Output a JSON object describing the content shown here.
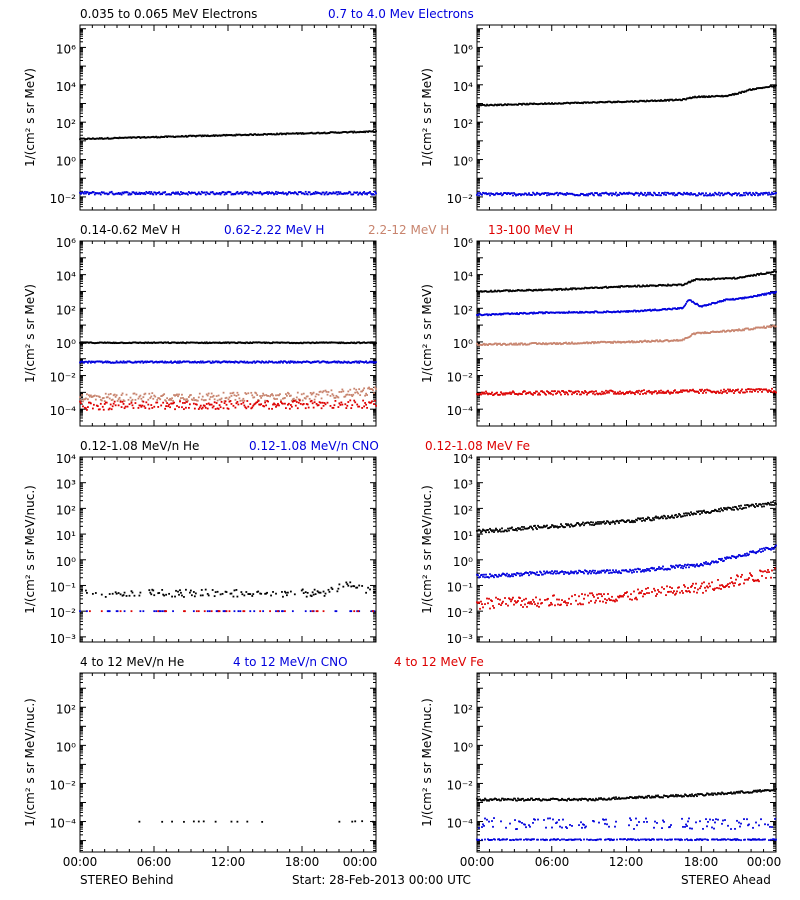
{
  "colors": {
    "black": "#000000",
    "blue": "#0000dd",
    "tan": "#c8846e",
    "red": "#dd0000"
  },
  "rows": [
    {
      "title_segments": [
        {
          "text": "0.035 to 0.065 MeV Electrons",
          "color": "black"
        },
        {
          "text": "0.7 to 4.0 Mev Electrons",
          "color": "blue"
        }
      ]
    },
    {
      "title_segments": [
        {
          "text": "0.14-0.62 MeV H",
          "color": "black"
        },
        {
          "text": "0.62-2.22 MeV H",
          "color": "blue"
        },
        {
          "text": "2.2-12 MeV H",
          "color": "tan"
        },
        {
          "text": "13-100 MeV H",
          "color": "red"
        }
      ]
    },
    {
      "title_segments": [
        {
          "text": "0.12-1.08 MeV/n He",
          "color": "black"
        },
        {
          "text": "0.12-1.08 MeV/n CNO",
          "color": "blue"
        },
        {
          "text": "0.12-1.08 MeV Fe",
          "color": "red"
        }
      ]
    },
    {
      "title_segments": [
        {
          "text": "4 to 12 MeV/n He",
          "color": "black"
        },
        {
          "text": "4 to 12 MeV/n CNO",
          "color": "blue"
        },
        {
          "text": "4 to 12 MeV Fe",
          "color": "red"
        }
      ]
    }
  ],
  "x_tick_labels": [
    "00:00",
    "06:00",
    "12:00",
    "18:00",
    "00:00"
  ],
  "footer": {
    "left": "STEREO Behind",
    "center": "Start: 28-Feb-2013 00:00 UTC",
    "right": "STEREO Ahead"
  },
  "chart_data": [
    {
      "type": "scatter",
      "panel": "row1-left",
      "yscale": "log",
      "ylim_log10": [
        -2.7,
        7.2
      ],
      "xlim_hours": [
        0,
        24
      ],
      "ylabel": "1/(cm² s sr MeV)",
      "ytick_exponents": [
        -2,
        0,
        2,
        4,
        6
      ],
      "series": [
        {
          "color": "black",
          "x_hours": [
            0,
            6,
            12,
            18,
            24
          ],
          "log10_y": [
            1.1,
            1.2,
            1.3,
            1.4,
            1.5
          ],
          "scatter": 0.03,
          "gap_prob": 0
        },
        {
          "color": "blue",
          "x_hours": [
            0,
            24
          ],
          "log10_y": [
            -1.8,
            -1.8
          ],
          "scatter": 0.08,
          "gap_prob": 0
        }
      ]
    },
    {
      "type": "scatter",
      "panel": "row1-right",
      "yscale": "log",
      "ylim_log10": [
        -2.7,
        7.2
      ],
      "xlim_hours": [
        0,
        24
      ],
      "ylabel": "1/(cm² s sr MeV)",
      "ytick_exponents": [
        -2,
        0,
        2,
        4,
        6
      ],
      "series": [
        {
          "color": "black",
          "x_hours": [
            0,
            6,
            12,
            16.5,
            17.5,
            20,
            21,
            22,
            24
          ],
          "log10_y": [
            2.9,
            3.0,
            3.1,
            3.2,
            3.35,
            3.4,
            3.55,
            3.75,
            3.95
          ],
          "scatter": 0.03,
          "gap_prob": 0
        },
        {
          "color": "blue",
          "x_hours": [
            0,
            24
          ],
          "log10_y": [
            -1.85,
            -1.85
          ],
          "scatter": 0.08,
          "gap_prob": 0
        }
      ]
    },
    {
      "type": "scatter",
      "panel": "row2-left",
      "yscale": "log",
      "ylim_log10": [
        -5.0,
        6.0
      ],
      "xlim_hours": [
        0,
        24
      ],
      "ylabel": "1/(cm² s sr MeV)",
      "ytick_exponents": [
        -4,
        -2,
        0,
        2,
        4,
        6
      ],
      "series": [
        {
          "color": "black",
          "x_hours": [
            0,
            24
          ],
          "log10_y": [
            -0.05,
            -0.05
          ],
          "scatter": 0.03,
          "gap_prob": 0
        },
        {
          "color": "blue",
          "x_hours": [
            0,
            24
          ],
          "log10_y": [
            -1.2,
            -1.2
          ],
          "scatter": 0.05,
          "gap_prob": 0
        },
        {
          "color": "tan",
          "x_hours": [
            0,
            18,
            24
          ],
          "log10_y": [
            -3.3,
            -3.25,
            -2.9
          ],
          "scatter": 0.25,
          "gap_prob": 0.1
        },
        {
          "color": "red",
          "x_hours": [
            0,
            24
          ],
          "log10_y": [
            -3.8,
            -3.7
          ],
          "scatter": 0.25,
          "gap_prob": 0.2
        }
      ]
    },
    {
      "type": "scatter",
      "panel": "row2-right",
      "yscale": "log",
      "ylim_log10": [
        -5.0,
        6.0
      ],
      "xlim_hours": [
        0,
        24
      ],
      "ylabel": "1/(cm² s sr MeV)",
      "ytick_exponents": [
        -4,
        -2,
        0,
        2,
        4,
        6
      ],
      "series": [
        {
          "color": "black",
          "x_hours": [
            0,
            6,
            12,
            16.5,
            17.5,
            21,
            24
          ],
          "log10_y": [
            3.0,
            3.1,
            3.3,
            3.4,
            3.7,
            3.8,
            4.2
          ],
          "scatter": 0.04,
          "gap_prob": 0
        },
        {
          "color": "blue",
          "x_hours": [
            0,
            6,
            12,
            16.5,
            17,
            18,
            20,
            21,
            24
          ],
          "log10_y": [
            1.6,
            1.75,
            1.8,
            2.0,
            2.5,
            2.1,
            2.5,
            2.55,
            2.95
          ],
          "scatter": 0.04,
          "gap_prob": 0
        },
        {
          "color": "tan",
          "x_hours": [
            0,
            6,
            12,
            16.5,
            17.5,
            21,
            24
          ],
          "log10_y": [
            -0.15,
            -0.1,
            0.0,
            0.1,
            0.5,
            0.7,
            0.95
          ],
          "scatter": 0.05,
          "gap_prob": 0
        },
        {
          "color": "red",
          "x_hours": [
            0,
            12,
            24
          ],
          "log10_y": [
            -3.05,
            -3.0,
            -2.9
          ],
          "scatter": 0.12,
          "gap_prob": 0
        }
      ]
    },
    {
      "type": "scatter",
      "panel": "row3-left",
      "yscale": "log",
      "ylim_log10": [
        -3.2,
        4.0
      ],
      "xlim_hours": [
        0,
        24
      ],
      "ylabel": "1/(cm² s sr MeV/nuc.)",
      "ytick_exponents": [
        -3,
        -2,
        -1,
        0,
        1,
        2,
        3,
        4
      ],
      "series": [
        {
          "color": "black",
          "x_hours": [
            0,
            20,
            22,
            24
          ],
          "log10_y": [
            -1.3,
            -1.3,
            -0.9,
            -1.3
          ],
          "scatter": 0.15,
          "gap_prob": 0.55
        },
        {
          "color": "blue",
          "x_hours": [
            0,
            24
          ],
          "log10_y": [
            -2.0,
            -2.0
          ],
          "scatter": 0.0,
          "gap_prob": 0.85
        },
        {
          "color": "red",
          "x_hours": [
            0,
            24
          ],
          "log10_y": [
            -2.0,
            -2.0
          ],
          "scatter": 0.0,
          "gap_prob": 0.9
        }
      ]
    },
    {
      "type": "scatter",
      "panel": "row3-right",
      "yscale": "log",
      "ylim_log10": [
        -3.2,
        4.0
      ],
      "xlim_hours": [
        0,
        24
      ],
      "ylabel": "1/(cm² s sr MeV/nuc.)",
      "ytick_exponents": [
        -3,
        -2,
        -1,
        0,
        1,
        2,
        3,
        4
      ],
      "series": [
        {
          "color": "black",
          "x_hours": [
            0,
            6,
            12,
            16,
            18,
            24
          ],
          "log10_y": [
            1.1,
            1.3,
            1.5,
            1.7,
            1.85,
            2.2
          ],
          "scatter": 0.07,
          "gap_prob": 0
        },
        {
          "color": "blue",
          "x_hours": [
            0,
            6,
            12,
            18,
            24
          ],
          "log10_y": [
            -0.65,
            -0.5,
            -0.45,
            -0.2,
            0.5
          ],
          "scatter": 0.07,
          "gap_prob": 0
        },
        {
          "color": "red",
          "x_hours": [
            0,
            6,
            12,
            18,
            24
          ],
          "log10_y": [
            -1.7,
            -1.6,
            -1.4,
            -1.1,
            -0.5
          ],
          "scatter": 0.22,
          "gap_prob": 0.15
        }
      ]
    },
    {
      "type": "scatter",
      "panel": "row4-left",
      "yscale": "log",
      "ylim_log10": [
        -5.6,
        3.8
      ],
      "xlim_hours": [
        0,
        24
      ],
      "ylabel": "1/(cm² s sr MeV/nuc.)",
      "ytick_exponents": [
        -4,
        -2,
        0,
        2
      ],
      "series": [
        {
          "color": "black",
          "x_hours": [
            0,
            24
          ],
          "log10_y": [
            -4.0,
            -4.0
          ],
          "scatter": 0.02,
          "gap_prob": 0.93
        }
      ]
    },
    {
      "type": "scatter",
      "panel": "row4-right",
      "yscale": "log",
      "ylim_log10": [
        -5.6,
        3.8
      ],
      "xlim_hours": [
        0,
        24
      ],
      "ylabel": "1/(cm² s sr MeV/nuc.)",
      "ytick_exponents": [
        -4,
        -2,
        0,
        2
      ],
      "series": [
        {
          "color": "black",
          "x_hours": [
            0,
            9,
            12,
            18,
            24
          ],
          "log10_y": [
            -2.85,
            -2.85,
            -2.75,
            -2.6,
            -2.35
          ],
          "scatter": 0.06,
          "gap_prob": 0
        },
        {
          "color": "blue",
          "x_hours": [
            0,
            24
          ],
          "log10_y": [
            -4.1,
            -4.1
          ],
          "scatter": 0.3,
          "gap_prob": 0.55
        },
        {
          "color": "blue",
          "x_hours": [
            0,
            24
          ],
          "log10_y": [
            -4.95,
            -4.95
          ],
          "scatter": 0.03,
          "gap_prob": 0.3
        }
      ]
    }
  ]
}
